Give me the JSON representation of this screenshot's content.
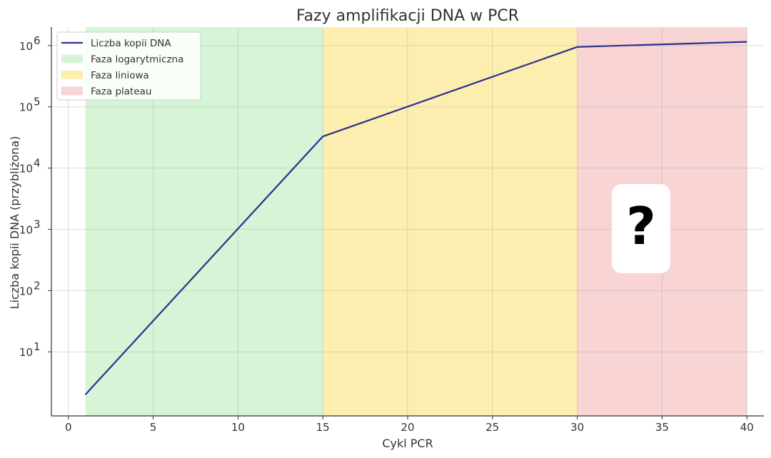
{
  "chart_data": {
    "type": "line",
    "title": "Fazy amplifikacji DNA w PCR",
    "xlabel": "Cykl PCR",
    "ylabel": "Liczba kopii DNA (przybliżona)",
    "y_scale": "log",
    "xlim": [
      -1,
      41
    ],
    "ylim": [
      0.9,
      2000000
    ],
    "x_ticks": [
      0,
      5,
      10,
      15,
      20,
      25,
      30,
      35,
      40
    ],
    "y_ticks": [
      {
        "value": 10,
        "base": "10",
        "exp": "1"
      },
      {
        "value": 100,
        "base": "10",
        "exp": "2"
      },
      {
        "value": 1000,
        "base": "10",
        "exp": "3"
      },
      {
        "value": 10000,
        "base": "10",
        "exp": "4"
      },
      {
        "value": 100000,
        "base": "10",
        "exp": "5"
      },
      {
        "value": 1000000,
        "base": "10",
        "exp": "6"
      }
    ],
    "grid": true,
    "legend_position": "top-left",
    "series": [
      {
        "name": "Liczba kopii DNA",
        "color": "#2b2f8f",
        "x": [
          1,
          15,
          30,
          40
        ],
        "y": [
          2,
          32768,
          950000,
          1150000
        ]
      }
    ],
    "regions": [
      {
        "name": "Faza logarytmiczna",
        "x_start": 1,
        "x_end": 15,
        "color": "#d6f5d6"
      },
      {
        "name": "Faza liniowa",
        "x_start": 15,
        "x_end": 30,
        "color": "#fdeeb0"
      },
      {
        "name": "Faza plateau",
        "x_start": 30,
        "x_end": 40,
        "color": "#f8d4d4"
      }
    ],
    "annotation": {
      "text": "?",
      "x": 34.5,
      "y": 1000
    }
  }
}
